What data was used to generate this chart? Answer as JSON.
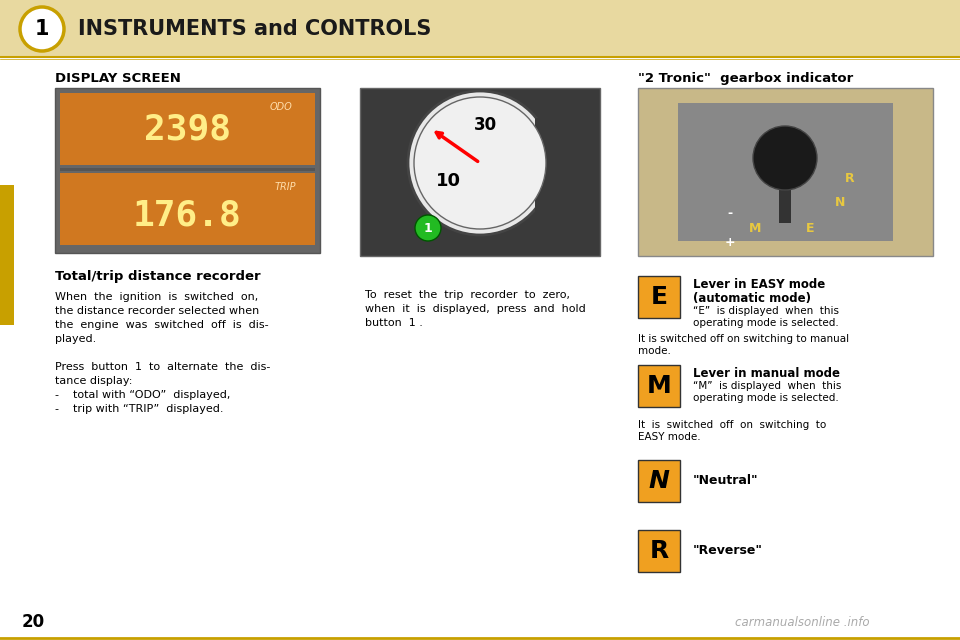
{
  "bg_color": "#FFFFFF",
  "header_bg": "#E8D9A0",
  "header_line_color": "#C8A000",
  "header_text": "INSTRUMENTS and CONTROLS",
  "page_number": "20",
  "orange_color": "#F0A020",
  "orange_dark": "#CC8800",
  "left_strip_color": "#C8A000",
  "footer_text": "carmanualsonline .info",
  "footer_color": "#AAAAAA",
  "section1_title": "DISPLAY SCREEN",
  "section2_title": "\"2 Tronic\"  gearbox indicator",
  "subsection_title": "Total/trip distance recorder",
  "img1_bg": "#666666",
  "img1_panel": "#D07820",
  "img2_bg": "#3A3A3A",
  "img3_bg": "#C8B888",
  "img3_inner": "#888888",
  "knob_color": "#222222",
  "gear_highlight": "#E8C840",
  "para1_lines": [
    "When  the  ignition  is  switched  on,",
    "the distance recorder selected when",
    "the  engine  was  switched  off  is  dis-",
    "played."
  ],
  "para2_lines": [
    "Press  button  1  to  alternate  the  dis-",
    "tance display:",
    "-    total with “ODO”  displayed,",
    "-    trip with “TRIP”  displayed."
  ],
  "para3_lines": [
    "To  reset  the  trip  recorder  to  zero,",
    "when  it  is  displayed,  press  and  hold",
    "button  1 ."
  ],
  "easy_title1": "Lever in EASY mode",
  "easy_title2": "(automatic mode)",
  "easy_body1": "“E”  is displayed  when  this",
  "easy_body2": "operating mode is selected.",
  "easy_switch1": "It is switched off on switching to manual",
  "easy_switch2": "mode.",
  "manual_title": "Lever in manual mode",
  "manual_body1": "“M”  is displayed  when  this",
  "manual_body2": "operating mode is selected.",
  "manual_switch1": "It  is  switched  off  on  switching  to",
  "manual_switch2": "EASY mode.",
  "neutral_label": "\"Neutral\"",
  "reverse_label": "\"Reverse\""
}
